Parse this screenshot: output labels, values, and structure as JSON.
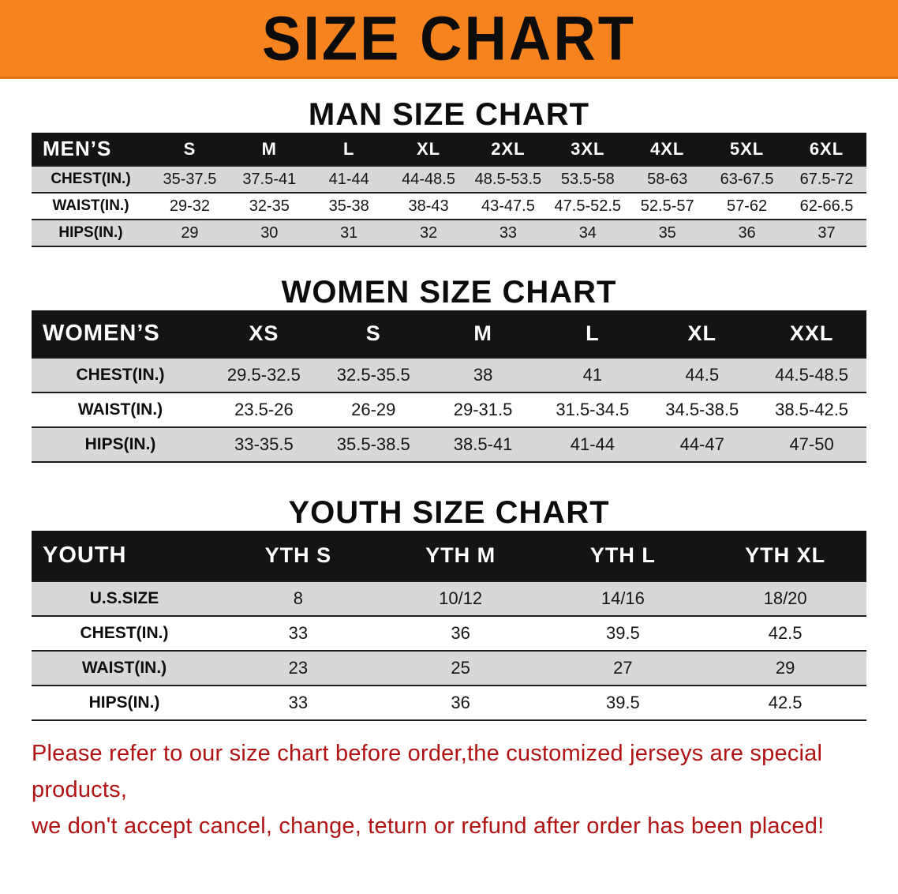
{
  "colors": {
    "banner_orange": "#f6831e",
    "banner_edge": "#e2740f",
    "header_black": "#141414",
    "row_gray": "#d8d8d8",
    "disclaimer_red": "#b11212",
    "line_dark": "#1e1e1e"
  },
  "banner": {
    "title": "SIZE CHART"
  },
  "men": {
    "heading": "MAN SIZE CHART",
    "header": [
      "MEN’S",
      "S",
      "M",
      "L",
      "XL",
      "2XL",
      "3XL",
      "4XL",
      "5XL",
      "6XL"
    ],
    "rows": [
      {
        "label": "CHEST(IN.)",
        "values": [
          "35-37.5",
          "37.5-41",
          "41-44",
          "44-48.5",
          "48.5-53.5",
          "53.5-58",
          "58-63",
          "63-67.5",
          "67.5-72"
        ]
      },
      {
        "label": "WAIST(IN.)",
        "values": [
          "29-32",
          "32-35",
          "35-38",
          "38-43",
          "43-47.5",
          "47.5-52.5",
          "52.5-57",
          "57-62",
          "62-66.5"
        ]
      },
      {
        "label": "HIPS(IN.)",
        "values": [
          "29",
          "30",
          "31",
          "32",
          "33",
          "34",
          "35",
          "36",
          "37"
        ]
      }
    ]
  },
  "women": {
    "heading": "WOMEN SIZE CHART",
    "header": [
      "WOMEN’S",
      "XS",
      "S",
      "M",
      "L",
      "XL",
      "XXL"
    ],
    "rows": [
      {
        "label": "CHEST(IN.)",
        "values": [
          "29.5-32.5",
          "32.5-35.5",
          "38",
          "41",
          "44.5",
          "44.5-48.5"
        ]
      },
      {
        "label": "WAIST(IN.)",
        "values": [
          "23.5-26",
          "26-29",
          "29-31.5",
          "31.5-34.5",
          "34.5-38.5",
          "38.5-42.5"
        ]
      },
      {
        "label": "HIPS(IN.)",
        "values": [
          "33-35.5",
          "35.5-38.5",
          "38.5-41",
          "41-44",
          "44-47",
          "47-50"
        ]
      }
    ]
  },
  "youth": {
    "heading": "YOUTH SIZE CHART",
    "header": [
      "YOUTH",
      "YTH S",
      "YTH M",
      "YTH L",
      "YTH XL"
    ],
    "rows": [
      {
        "label": "U.S.SIZE",
        "values": [
          "8",
          "10/12",
          "14/16",
          "18/20"
        ]
      },
      {
        "label": "CHEST(IN.)",
        "values": [
          "33",
          "36",
          "39.5",
          "42.5"
        ]
      },
      {
        "label": "WAIST(IN.)",
        "values": [
          "23",
          "25",
          "27",
          "29"
        ]
      },
      {
        "label": "HIPS(IN.)",
        "values": [
          "33",
          "36",
          "39.5",
          "42.5"
        ]
      }
    ]
  },
  "disclaimer": {
    "line1": "Please refer to our size chart before order,the customized jerseys are special products,",
    "line2": "we don't accept cancel, change, teturn or refund after order has been placed!"
  }
}
